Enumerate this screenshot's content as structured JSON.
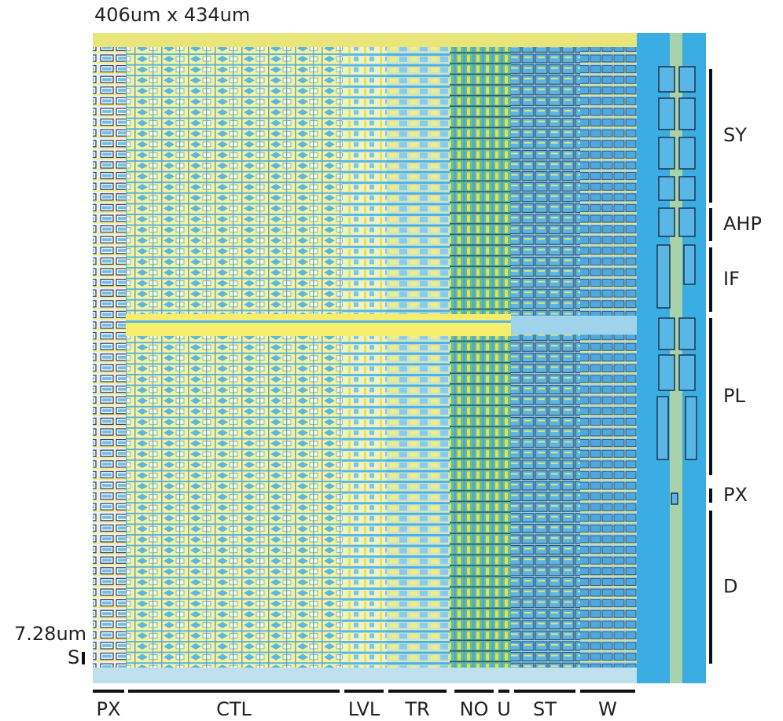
{
  "title": "406um x 434um",
  "scale_bar": {
    "length_label": "7.28um",
    "label": "S"
  },
  "bottom_labels": [
    "PX",
    "CTL",
    "LVL",
    "TR",
    "NO",
    "U",
    "ST",
    "W"
  ],
  "right_labels": [
    "SY",
    "AHP",
    "IF",
    "PL",
    "PX",
    "D"
  ]
}
